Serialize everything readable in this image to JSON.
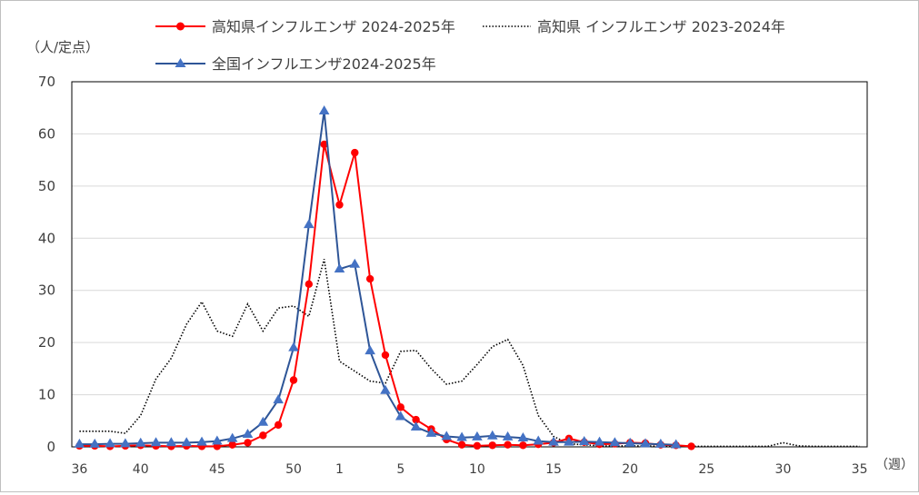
{
  "chart_data": {
    "type": "line",
    "yunit": "（人/定点）",
    "xunit": "（週）",
    "ylim": [
      0,
      70
    ],
    "yticks": [
      0,
      10,
      20,
      30,
      40,
      50,
      60,
      70
    ],
    "xtick_labels": [
      "36",
      "40",
      "45",
      "50",
      "1",
      "5",
      "10",
      "15",
      "20",
      "25",
      "30",
      "35"
    ],
    "weeks": [
      "36",
      "37",
      "38",
      "39",
      "40",
      "41",
      "42",
      "43",
      "44",
      "45",
      "46",
      "47",
      "48",
      "49",
      "50",
      "51",
      "52",
      "1",
      "2",
      "3",
      "4",
      "5",
      "6",
      "7",
      "8",
      "9",
      "10",
      "11",
      "12",
      "13",
      "14",
      "15",
      "16",
      "17",
      "18",
      "19",
      "20",
      "21",
      "22",
      "23",
      "24",
      "25",
      "26",
      "27",
      "28",
      "29",
      "30",
      "31",
      "32",
      "33",
      "34",
      "35"
    ],
    "grid": true,
    "legend_position": "top",
    "series": [
      {
        "name": "高知県インフルエンザ 2024-2025年",
        "color": "#ff0000",
        "style": "solid",
        "marker": "circle",
        "values": [
          0.2,
          0.2,
          0.1,
          0.2,
          0.3,
          0.2,
          0.1,
          0.2,
          0.1,
          0.1,
          0.4,
          0.8,
          2.2,
          4.2,
          12.8,
          31.2,
          58.0,
          46.4,
          56.4,
          32.2,
          17.6,
          7.6,
          5.2,
          3.4,
          1.4,
          0.4,
          0.2,
          0.3,
          0.4,
          0.3,
          0.5,
          0.8,
          1.6,
          0.9,
          0.5,
          0.6,
          0.8,
          0.7,
          0.4,
          0.3,
          0.1
        ]
      },
      {
        "name": "高知県 インフルエンザ 2023-2024年",
        "color": "#000000",
        "style": "dotted",
        "marker": "none",
        "values": [
          3.0,
          3.0,
          3.0,
          2.6,
          6.0,
          13.0,
          17.0,
          23.5,
          27.8,
          22.2,
          21.2,
          27.4,
          22.2,
          26.6,
          27.0,
          25.0,
          36.0,
          16.4,
          14.5,
          12.6,
          12.2,
          18.3,
          18.5,
          15.0,
          12.0,
          12.6,
          15.8,
          19.2,
          20.6,
          15.6,
          6.0,
          2.0,
          0.6,
          0.4,
          0.2,
          0.2,
          0.2,
          0.2,
          0.1,
          0.1,
          0.1,
          0.1,
          0.1,
          0.1,
          0.1,
          0.1,
          0.8,
          0.2,
          0.1,
          0.1,
          0.1,
          0.1
        ]
      },
      {
        "name": "全国インフルエンザ2024-2025年",
        "color": "#2e5597",
        "style": "solid",
        "marker": "triangle",
        "values": [
          0.5,
          0.5,
          0.6,
          0.6,
          0.7,
          0.8,
          0.8,
          0.8,
          0.9,
          1.1,
          1.6,
          2.4,
          4.7,
          9.0,
          19.0,
          42.6,
          64.4,
          34.1,
          35.0,
          18.4,
          10.8,
          5.8,
          3.8,
          2.6,
          2.0,
          1.8,
          1.9,
          2.1,
          1.9,
          1.7,
          1.1,
          0.9,
          0.9,
          1.0,
          0.9,
          0.8,
          0.7,
          0.6,
          0.5,
          0.4
        ]
      }
    ]
  }
}
